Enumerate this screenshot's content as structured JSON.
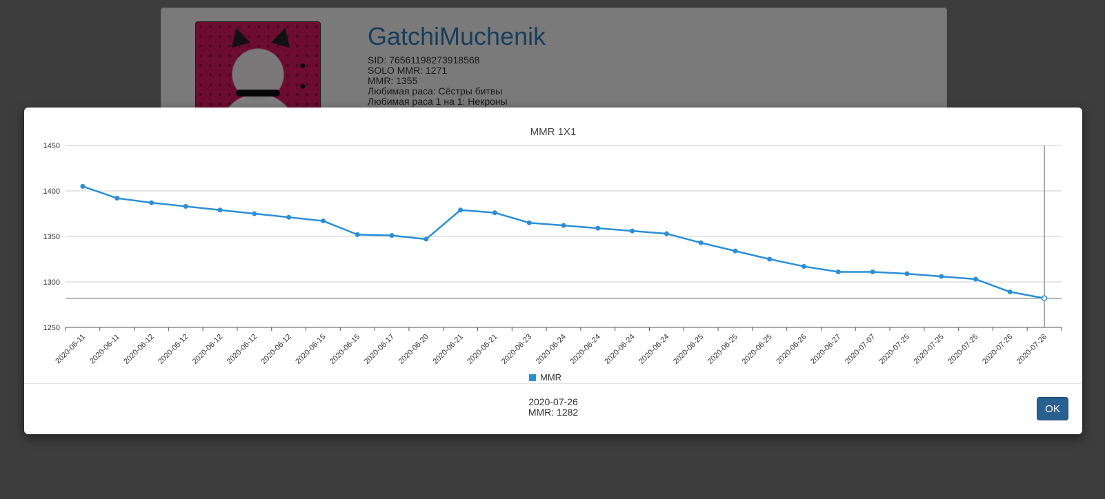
{
  "profile": {
    "username": "GatchiMuchenik",
    "sid": "SID: 76561198273918568",
    "solo_mmr": "SOLO MMR: 1271",
    "mmr": "MMR: 1355",
    "fav_race": "Любимая раса: Сёстры битвы",
    "fav_race_1v1": "Любимая раса 1 на 1: Некроны"
  },
  "status": {
    "date": "2020-07-26",
    "mmr": "MMR: 1282"
  },
  "modal": {
    "ok_label": "OK"
  },
  "colors": {
    "series": "#2b8fd6",
    "grid": "#cccccc",
    "button": "#286090"
  },
  "chart_data": {
    "type": "line",
    "title": "MMR 1X1",
    "xlabel": "",
    "ylabel": "",
    "ylim": [
      1250,
      1450
    ],
    "yticks": [
      1250,
      1300,
      1350,
      1400,
      1450
    ],
    "grid": true,
    "legend_position": "bottom",
    "categories": [
      "2020-06-11",
      "2020-06-11",
      "2020-06-12",
      "2020-06-12",
      "2020-06-12",
      "2020-06-12",
      "2020-06-12",
      "2020-06-15",
      "2020-06-15",
      "2020-06-17",
      "2020-06-20",
      "2020-06-21",
      "2020-06-21",
      "2020-06-23",
      "2020-06-24",
      "2020-06-24",
      "2020-06-24",
      "2020-06-24",
      "2020-06-25",
      "2020-06-25",
      "2020-06-25",
      "2020-06-26",
      "2020-06-27",
      "2020-07-07",
      "2020-07-25",
      "2020-07-25",
      "2020-07-25",
      "2020-07-26",
      "2020-07-26"
    ],
    "series": [
      {
        "name": "MMR",
        "values": [
          1405,
          1392,
          1387,
          1383,
          1379,
          1375,
          1371,
          1367,
          1352,
          1351,
          1347,
          1379,
          1376,
          1365,
          1362,
          1359,
          1356,
          1353,
          1343,
          1334,
          1325,
          1317,
          1311,
          1311,
          1309,
          1306,
          1303,
          1289,
          1282
        ]
      }
    ],
    "highlight_index": 28
  }
}
